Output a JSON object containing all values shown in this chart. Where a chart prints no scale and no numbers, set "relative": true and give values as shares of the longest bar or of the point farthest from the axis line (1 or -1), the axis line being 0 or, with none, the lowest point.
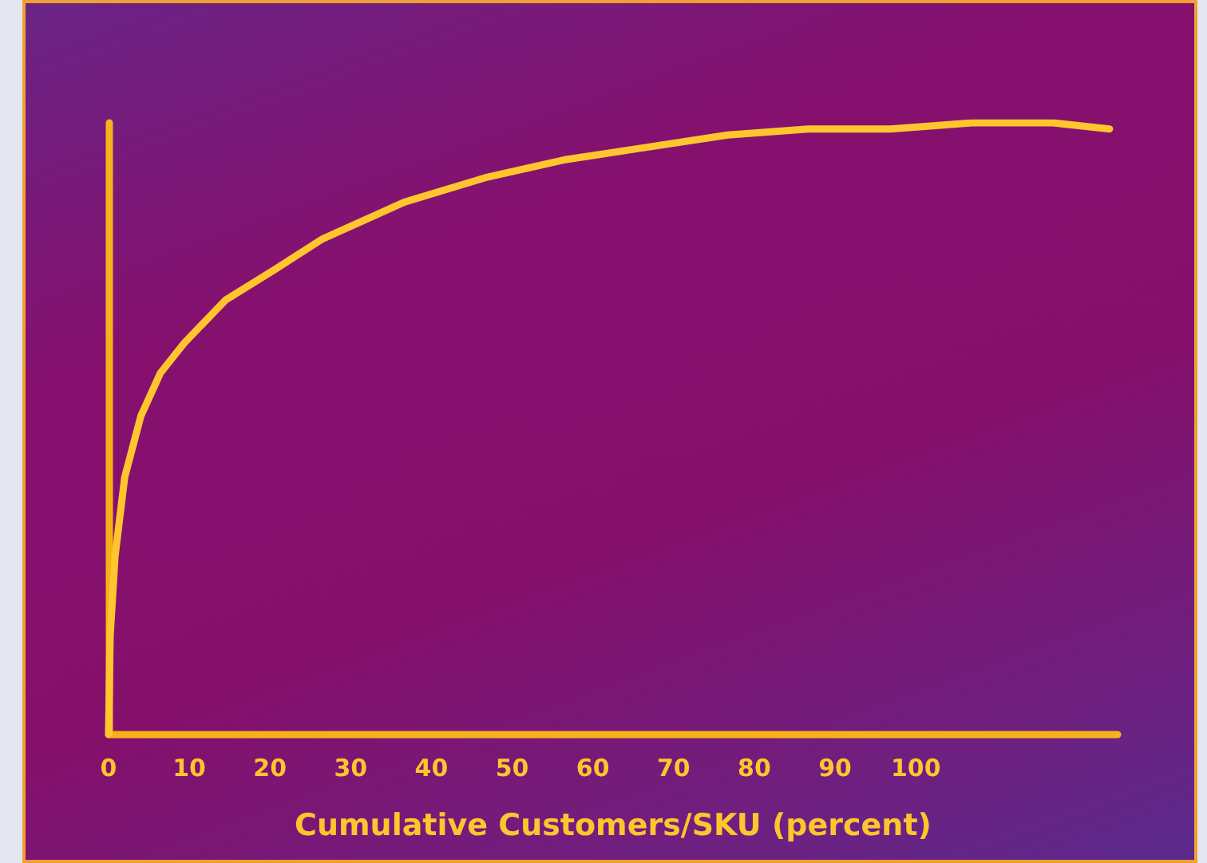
{
  "chart_data": {
    "type": "line",
    "xlabel": "Cumulative Customers/SKU (percent)",
    "relative": true,
    "x": [
      0,
      0.2,
      0.8,
      2,
      4,
      6.4,
      9.4,
      14.5,
      20.6,
      26.5,
      36.6,
      46.6,
      56.7,
      66.7,
      76.7,
      86.7,
      96.9,
      107,
      117,
      124
    ],
    "series": [
      {
        "color": "#ffc52e",
        "values": [
          0,
          0.16,
          0.29,
          0.42,
          0.52,
          0.59,
          0.64,
          0.71,
          0.76,
          0.81,
          0.87,
          0.91,
          0.94,
          0.96,
          0.98,
          0.99,
          0.99,
          1,
          1,
          0.99
        ]
      }
    ],
    "xlim": [
      0,
      125
    ],
    "xticks": [
      0,
      10,
      20,
      30,
      40,
      50,
      60,
      70,
      80,
      90,
      100
    ],
    "grid": false,
    "marker": "none",
    "line_style": "solid"
  }
}
